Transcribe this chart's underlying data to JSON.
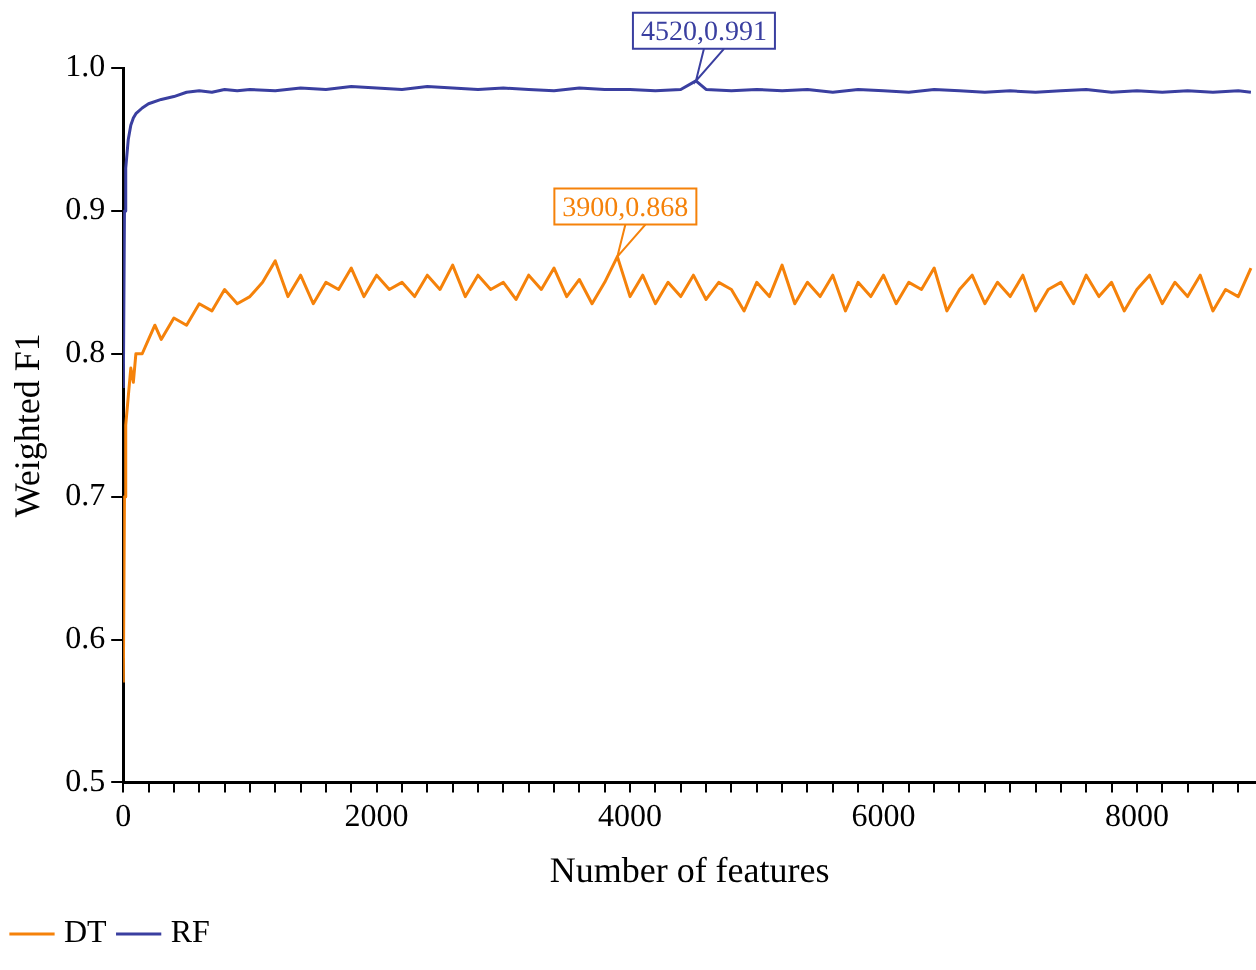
{
  "chart_data": {
    "type": "line",
    "xlabel": "Number of features",
    "ylabel": "Weighted F1",
    "xlim": [
      0,
      8940
    ],
    "ylim": [
      0.5,
      1.0
    ],
    "xticks": [
      0,
      {
        "value": 200,
        "label": null
      },
      {
        "value": 400,
        "label": null
      },
      {
        "value": 600,
        "label": null
      },
      {
        "value": 800,
        "label": null
      },
      {
        "value": 1000,
        "label": null
      },
      {
        "value": 1200,
        "label": null
      },
      {
        "value": 1400,
        "label": null
      },
      {
        "value": 1600,
        "label": null
      },
      {
        "value": 1800,
        "label": null
      },
      2000,
      {
        "value": 2200,
        "label": null
      },
      {
        "value": 2400,
        "label": null
      },
      {
        "value": 2600,
        "label": null
      },
      {
        "value": 2800,
        "label": null
      },
      {
        "value": 3000,
        "label": null
      },
      {
        "value": 3200,
        "label": null
      },
      {
        "value": 3400,
        "label": null
      },
      {
        "value": 3600,
        "label": null
      },
      {
        "value": 3800,
        "label": null
      },
      4000,
      {
        "value": 4200,
        "label": null
      },
      {
        "value": 4400,
        "label": null
      },
      {
        "value": 4600,
        "label": null
      },
      {
        "value": 4800,
        "label": null
      },
      {
        "value": 5000,
        "label": null
      },
      {
        "value": 5200,
        "label": null
      },
      {
        "value": 5400,
        "label": null
      },
      {
        "value": 5600,
        "label": null
      },
      {
        "value": 5800,
        "label": null
      },
      6000,
      {
        "value": 6200,
        "label": null
      },
      {
        "value": 6400,
        "label": null
      },
      {
        "value": 6600,
        "label": null
      },
      {
        "value": 6800,
        "label": null
      },
      {
        "value": 7000,
        "label": null
      },
      {
        "value": 7200,
        "label": null
      },
      {
        "value": 7400,
        "label": null
      },
      {
        "value": 7600,
        "label": null
      },
      {
        "value": 7800,
        "label": null
      },
      8000,
      {
        "value": 8200,
        "label": null
      },
      {
        "value": 8400,
        "label": null
      },
      {
        "value": 8600,
        "label": null
      },
      {
        "value": 8800,
        "label": null
      }
    ],
    "yticks": [
      0.5,
      0.6,
      0.7,
      0.8,
      0.9,
      {
        "value": 1,
        "label": "1.0"
      }
    ],
    "legend": "bottom",
    "marker": "none",
    "line_style": "solid",
    "annotations": [
      {
        "text": "3900,0.868",
        "x": 3900,
        "y": 0.868
      },
      {
        "text": "4520,0.991",
        "x": 4520,
        "y": 0.991
      }
    ],
    "series": [
      {
        "name": "DT",
        "color": "#f5820a",
        "x": [
          1,
          10,
          20,
          40,
          60,
          80,
          100,
          150,
          200,
          250,
          300,
          400,
          500,
          600,
          700,
          800,
          900,
          1000,
          1100,
          1200,
          1300,
          1400,
          1500,
          1600,
          1700,
          1800,
          1900,
          2000,
          2100,
          2200,
          2300,
          2400,
          2500,
          2600,
          2700,
          2800,
          2900,
          3000,
          3100,
          3200,
          3300,
          3400,
          3500,
          3600,
          3700,
          3800,
          3900,
          4000,
          4100,
          4200,
          4300,
          4400,
          4500,
          4600,
          4700,
          4800,
          4900,
          5000,
          5100,
          5200,
          5300,
          5400,
          5500,
          5600,
          5700,
          5800,
          5900,
          6000,
          6100,
          6200,
          6300,
          6400,
          6500,
          6600,
          6700,
          6800,
          6900,
          7000,
          7100,
          7200,
          7300,
          7400,
          7500,
          7600,
          7700,
          7800,
          7900,
          8000,
          8100,
          8200,
          8300,
          8400,
          8500,
          8600,
          8700,
          8800,
          8900
        ],
        "values": [
          0.57,
          0.7,
          0.75,
          0.77,
          0.79,
          0.78,
          0.8,
          0.8,
          0.81,
          0.82,
          0.81,
          0.825,
          0.82,
          0.835,
          0.83,
          0.845,
          0.835,
          0.84,
          0.85,
          0.865,
          0.84,
          0.855,
          0.835,
          0.85,
          0.845,
          0.86,
          0.84,
          0.855,
          0.845,
          0.85,
          0.84,
          0.855,
          0.845,
          0.862,
          0.84,
          0.855,
          0.845,
          0.85,
          0.838,
          0.855,
          0.845,
          0.86,
          0.84,
          0.852,
          0.835,
          0.85,
          0.868,
          0.84,
          0.855,
          0.835,
          0.85,
          0.84,
          0.855,
          0.838,
          0.85,
          0.845,
          0.83,
          0.85,
          0.84,
          0.862,
          0.835,
          0.85,
          0.84,
          0.855,
          0.83,
          0.85,
          0.84,
          0.855,
          0.835,
          0.85,
          0.845,
          0.86,
          0.83,
          0.845,
          0.855,
          0.835,
          0.85,
          0.84,
          0.855,
          0.83,
          0.845,
          0.85,
          0.835,
          0.855,
          0.84,
          0.85,
          0.83,
          0.845,
          0.855,
          0.835,
          0.85,
          0.84,
          0.855,
          0.83,
          0.845,
          0.84,
          0.86
        ]
      },
      {
        "name": "RF",
        "color": "#3a3fa0",
        "x": [
          1,
          10,
          20,
          40,
          60,
          80,
          100,
          150,
          200,
          300,
          400,
          500,
          600,
          700,
          800,
          900,
          1000,
          1200,
          1400,
          1600,
          1800,
          2000,
          2200,
          2400,
          2600,
          2800,
          3000,
          3200,
          3400,
          3600,
          3800,
          4000,
          4200,
          4400,
          4520,
          4600,
          4800,
          5000,
          5200,
          5400,
          5600,
          5800,
          6000,
          6200,
          6400,
          6600,
          6800,
          7000,
          7200,
          7400,
          7600,
          7800,
          8000,
          8200,
          8400,
          8600,
          8800,
          8900
        ],
        "values": [
          0.776,
          0.9,
          0.93,
          0.95,
          0.96,
          0.965,
          0.968,
          0.972,
          0.975,
          0.978,
          0.98,
          0.983,
          0.984,
          0.983,
          0.985,
          0.984,
          0.985,
          0.984,
          0.986,
          0.985,
          0.987,
          0.986,
          0.985,
          0.987,
          0.986,
          0.985,
          0.986,
          0.985,
          0.984,
          0.986,
          0.985,
          0.985,
          0.984,
          0.985,
          0.991,
          0.985,
          0.984,
          0.985,
          0.984,
          0.985,
          0.983,
          0.985,
          0.984,
          0.983,
          0.985,
          0.984,
          0.983,
          0.984,
          0.983,
          0.984,
          0.985,
          0.983,
          0.984,
          0.983,
          0.984,
          0.983,
          0.984,
          0.983
        ]
      }
    ]
  }
}
